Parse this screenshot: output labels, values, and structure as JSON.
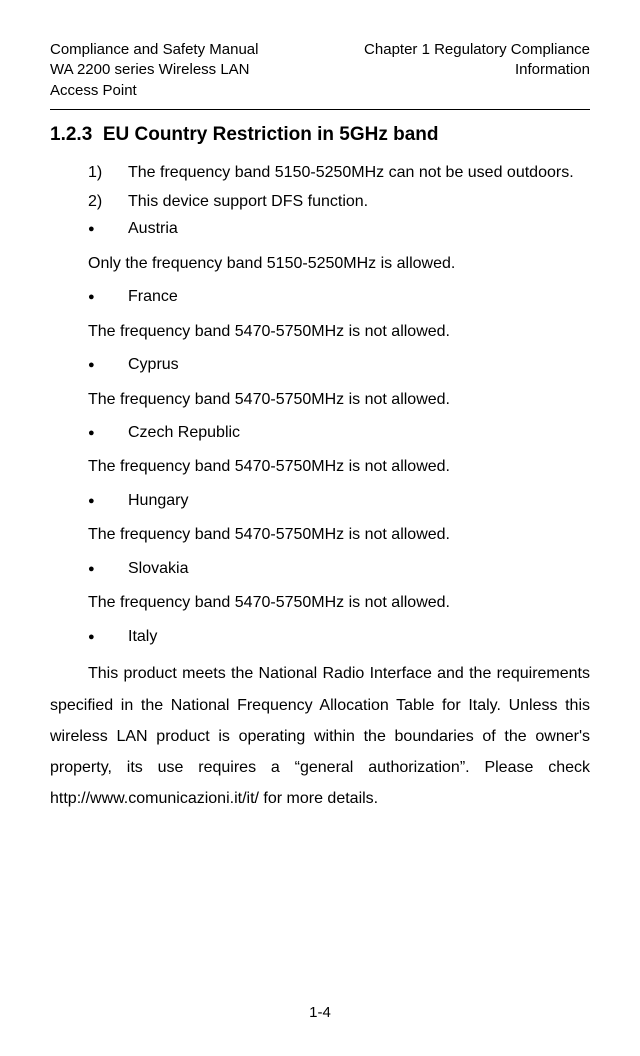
{
  "header": {
    "left_line1": "Compliance and Safety Manual",
    "left_line2": "WA 2200 series Wireless LAN",
    "left_line3": "Access Point",
    "right_line1": "Chapter 1  Regulatory Compliance",
    "right_line2": "Information"
  },
  "section": {
    "number": "1.2.3",
    "title": "EU Country Restriction in 5GHz band"
  },
  "items": {
    "n1_num": "1)",
    "n1_text": "The frequency band 5150-5250MHz can not be used outdoors.",
    "n2_num": "2)",
    "n2_text": "This device support DFS function."
  },
  "countries": {
    "austria": "Austria",
    "austria_text": "Only the frequency band 5150-5250MHz is allowed.",
    "france": "France",
    "france_text": "The frequency band 5470-5750MHz is not allowed.",
    "cyprus": "Cyprus",
    "cyprus_text": "The frequency band 5470-5750MHz is not allowed.",
    "czech": "Czech Republic",
    "czech_text": "The frequency band 5470-5750MHz is not allowed.",
    "hungary": "Hungary",
    "hungary_text": "The frequency band 5470-5750MHz is not allowed.",
    "slovakia": "Slovakia",
    "slovakia_text": "The frequency band 5470-5750MHz is not allowed.",
    "italy": "Italy",
    "italy_text": "This product meets the National Radio Interface and the requirements specified in the National Frequency Allocation Table for Italy. Unless this wireless LAN product is operating within the boundaries of the owner's property, its use requires a “general authorization”. Please check http://www.comunicazioni.it/it/ for more details."
  },
  "bullet": "●",
  "page_number": "1-4",
  "style": {
    "body_fontsize": 16,
    "title_fontsize": 19,
    "header_fontsize": 15,
    "text_color": "#000000",
    "background_color": "#ffffff"
  }
}
